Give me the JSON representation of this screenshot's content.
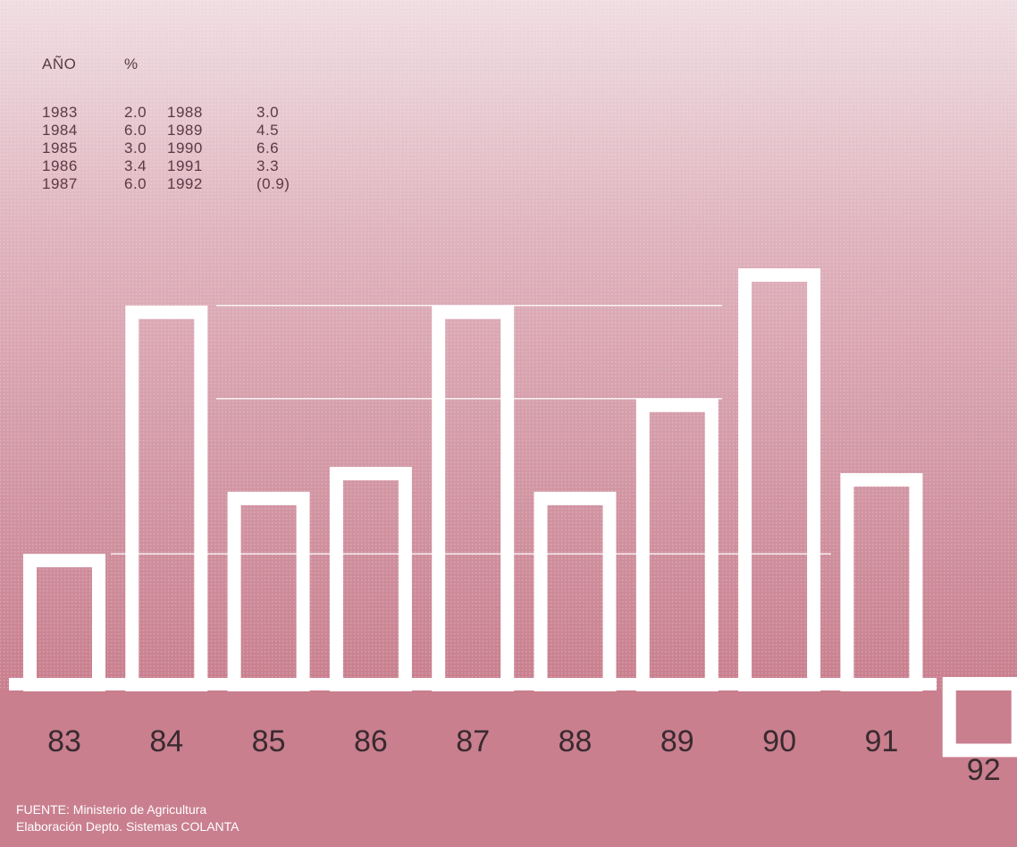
{
  "table": {
    "headers": [
      "AÑO",
      "%"
    ],
    "rows": [
      [
        "1983",
        "2.0",
        "1988",
        "3.0"
      ],
      [
        "1984",
        "6.0",
        "1989",
        "4.5"
      ],
      [
        "1985",
        "3.0",
        "1990",
        "6.6"
      ],
      [
        "1986",
        "3.4",
        "1991",
        "3.3"
      ],
      [
        "1987",
        "6.0",
        "1992",
        "(0.9)"
      ]
    ]
  },
  "source": {
    "line1": "FUENTE: Ministerio de Agricultura",
    "line2": "Elaboración Depto. Sistemas COLANTA"
  },
  "colors": {
    "background_top": "#ead2d8",
    "background_bottom": "#c97f8e",
    "bar_outline": "#ffffff",
    "table_text": "#5a3a44",
    "category_text": "#3a2a30"
  },
  "chart_data": {
    "type": "bar",
    "categories": [
      "83",
      "84",
      "85",
      "86",
      "87",
      "88",
      "89",
      "90",
      "91",
      "92"
    ],
    "values": [
      2.0,
      6.0,
      3.0,
      3.4,
      6.0,
      3.0,
      4.5,
      6.6,
      3.3,
      -0.9
    ],
    "title": "",
    "xlabel": "",
    "ylabel": "",
    "ylim": [
      -0.9,
      6.6
    ],
    "grid": true
  }
}
